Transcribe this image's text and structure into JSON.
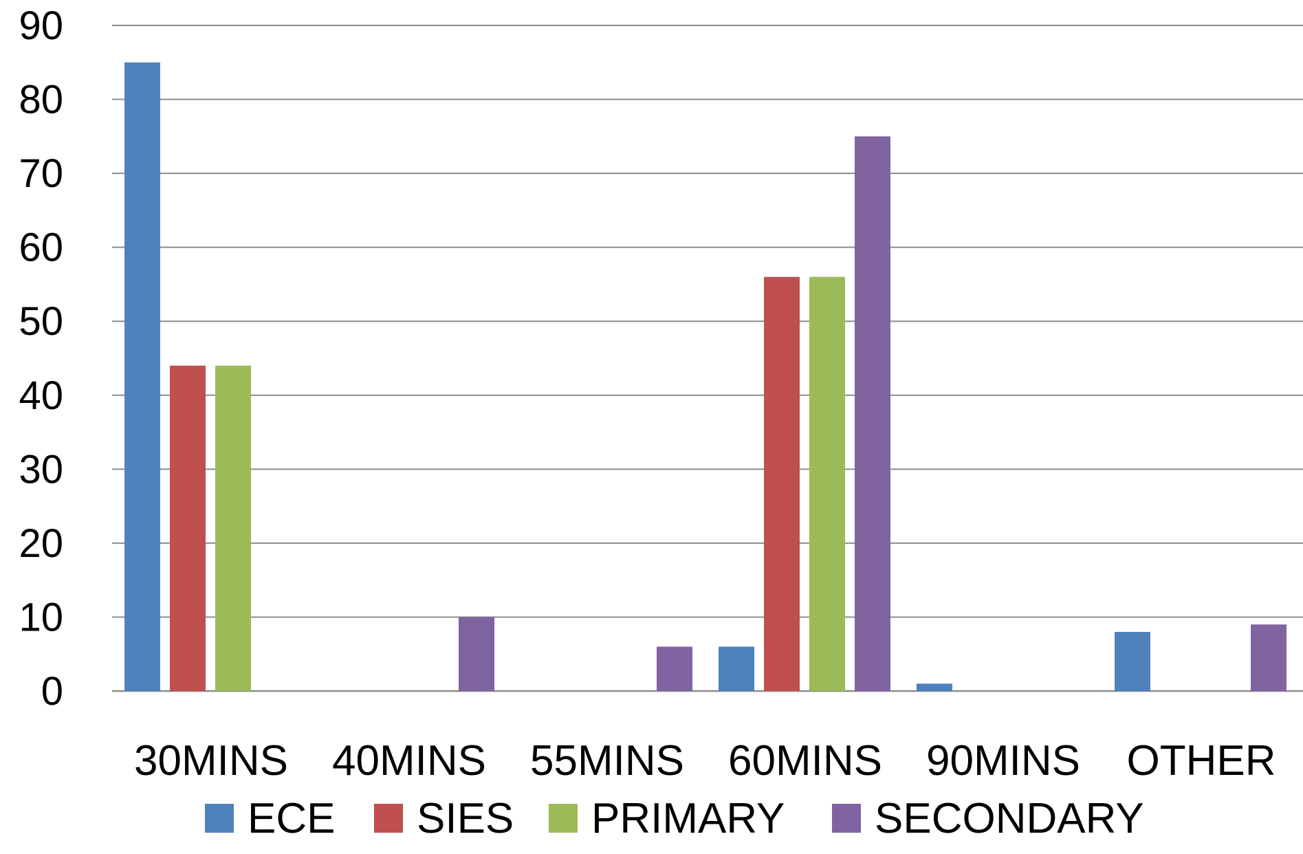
{
  "chart_data": {
    "type": "bar",
    "categories": [
      "30MINS",
      "40MINS",
      "55MINS",
      "60MINS",
      "90MINS",
      "OTHER"
    ],
    "series": [
      {
        "name": "ECE",
        "color": "#4F81BD",
        "values": [
          85,
          0,
          0,
          6,
          1,
          8
        ]
      },
      {
        "name": "SIES",
        "color": "#C0504D",
        "values": [
          44,
          0,
          0,
          56,
          0,
          0
        ]
      },
      {
        "name": "PRIMARY",
        "color": "#9BBB59",
        "values": [
          44,
          0,
          0,
          56,
          0,
          0
        ]
      },
      {
        "name": "SECONDARY",
        "color": "#8064A2",
        "values": [
          0,
          10,
          6,
          75,
          0,
          9
        ]
      }
    ],
    "yticks": [
      0,
      10,
      20,
      30,
      40,
      50,
      60,
      70,
      80,
      90
    ],
    "ylim": [
      0,
      90
    ],
    "grid": true,
    "legend": "bottom"
  }
}
